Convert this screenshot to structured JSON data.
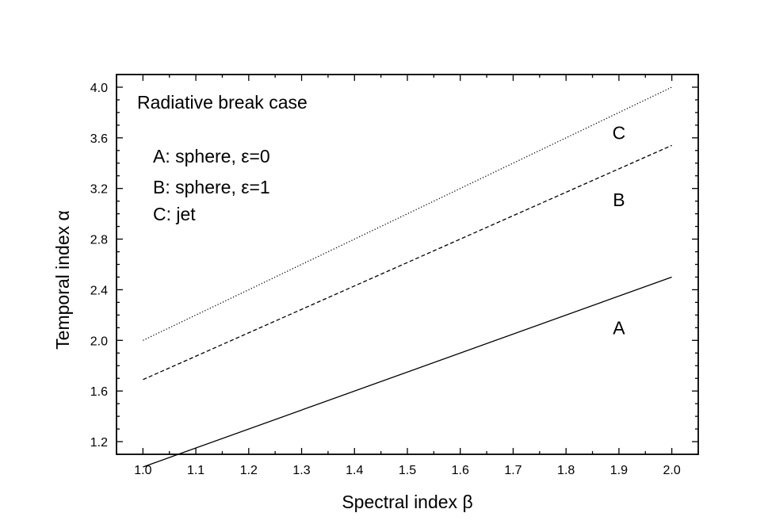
{
  "chart_data": {
    "type": "line",
    "xlabel": "Spectral index β",
    "ylabel": "Temporal index α",
    "xlim": [
      0.95,
      2.05
    ],
    "ylim": [
      1.1,
      4.1
    ],
    "xticks": [
      "1.0",
      "1.1",
      "1.2",
      "1.3",
      "1.4",
      "1.5",
      "1.6",
      "1.7",
      "1.8",
      "1.9",
      "2.0"
    ],
    "yticks": [
      "1.2",
      "1.6",
      "2.0",
      "2.4",
      "2.8",
      "3.2",
      "3.6",
      "4.0"
    ],
    "grid": false,
    "annotations": [
      "Radiative break case",
      "A: sphere, ε=0",
      "B: sphere, ε=1",
      "C: jet"
    ],
    "series": [
      {
        "name": "A",
        "style": "solid",
        "x": [
          1.0,
          2.0
        ],
        "y": [
          1.0,
          2.5
        ],
        "label_at": [
          1.9,
          2.1
        ]
      },
      {
        "name": "B",
        "style": "dashed",
        "x": [
          1.0,
          2.0
        ],
        "y": [
          1.69,
          3.54
        ],
        "label_at": [
          1.9,
          3.11
        ]
      },
      {
        "name": "C",
        "style": "dotted",
        "x": [
          1.0,
          2.0
        ],
        "y": [
          2.0,
          4.0
        ],
        "label_at": [
          1.9,
          3.64
        ]
      }
    ]
  }
}
